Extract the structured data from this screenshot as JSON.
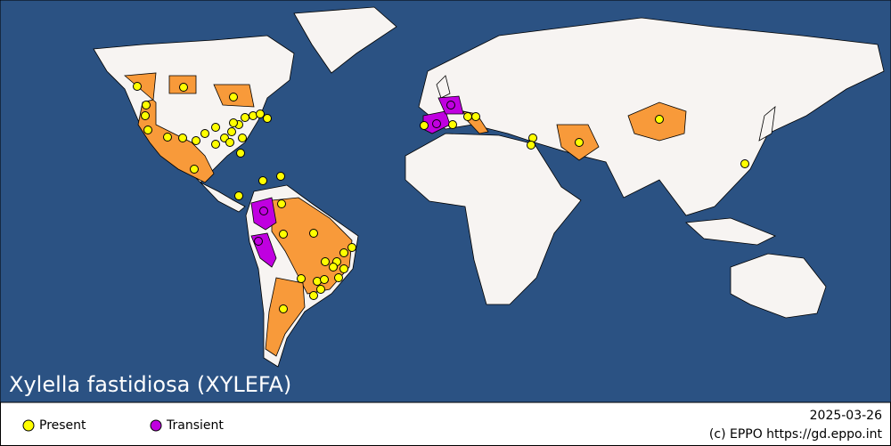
{
  "title": "Xylella fastidiosa (XYLEFA)",
  "legend": [
    {
      "label": "Present"
    },
    {
      "label": "Transient"
    }
  ],
  "date": "2025-03-26",
  "credit": "(c) EPPO https://gd.eppo.int"
}
